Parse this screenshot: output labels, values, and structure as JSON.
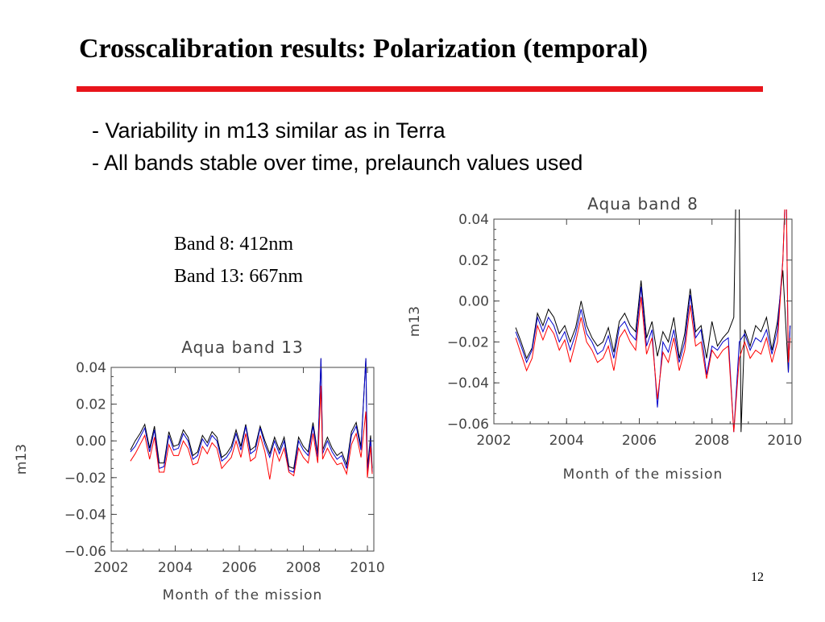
{
  "slide": {
    "title": "Crosscalibration results: Polarization (temporal)",
    "bullets": [
      "- Variability in m13 similar as in Terra",
      "- All bands stable over time, prelaunch values used"
    ],
    "band_notes": [
      "Band 8: 412nm",
      "Band 13: 667nm"
    ],
    "page_number": "12",
    "accent_color": "#e8141b"
  },
  "chart_data": [
    {
      "type": "line",
      "title": "Aqua band 8",
      "xlabel": "Month of the mission",
      "ylabel": "m13",
      "xlim": [
        2002,
        2010.2
      ],
      "ylim": [
        -0.06,
        0.04
      ],
      "xticks": [
        2002,
        2004,
        2006,
        2008,
        2010
      ],
      "yticks": [
        -0.06,
        -0.04,
        -0.02,
        0.0,
        0.02,
        0.04
      ],
      "ytick_labels": [
        "−0.06",
        "−0.04",
        "−0.02",
        "0.00",
        "0.02",
        "0.04"
      ],
      "grid": false,
      "series": [
        {
          "color": "#000000",
          "x": [
            2002.6,
            2002.75,
            2002.9,
            2003.05,
            2003.2,
            2003.35,
            2003.5,
            2003.65,
            2003.8,
            2003.95,
            2004.1,
            2004.25,
            2004.4,
            2004.55,
            2004.7,
            2004.85,
            2005.0,
            2005.15,
            2005.3,
            2005.45,
            2005.6,
            2005.75,
            2005.9,
            2006.05,
            2006.2,
            2006.35,
            2006.5,
            2006.65,
            2006.8,
            2006.95,
            2007.1,
            2007.25,
            2007.4,
            2007.55,
            2007.7,
            2007.85,
            2008.0,
            2008.15,
            2008.3,
            2008.45,
            2008.6,
            2008.65,
            2008.75,
            2008.8,
            2008.9,
            2009.05,
            2009.2,
            2009.35,
            2009.5,
            2009.65,
            2009.8,
            2009.95,
            2010.1,
            2010.15
          ],
          "y": [
            -0.013,
            -0.02,
            -0.028,
            -0.023,
            -0.006,
            -0.012,
            -0.004,
            -0.008,
            -0.016,
            -0.012,
            -0.02,
            -0.013,
            0.0,
            -0.012,
            -0.018,
            -0.022,
            -0.02,
            -0.013,
            -0.025,
            -0.01,
            -0.006,
            -0.012,
            -0.015,
            0.01,
            -0.018,
            -0.01,
            -0.027,
            -0.015,
            -0.02,
            -0.008,
            -0.028,
            -0.016,
            0.006,
            -0.015,
            -0.012,
            -0.028,
            -0.01,
            -0.022,
            -0.018,
            -0.015,
            -0.008,
            0.045,
            0.045,
            -0.064,
            -0.014,
            -0.022,
            -0.012,
            -0.015,
            -0.008,
            -0.024,
            -0.01,
            0.015,
            -0.035,
            -0.012
          ]
        },
        {
          "color": "#0000cc",
          "x": [
            2002.6,
            2002.75,
            2002.9,
            2003.05,
            2003.2,
            2003.35,
            2003.5,
            2003.65,
            2003.8,
            2003.95,
            2004.1,
            2004.25,
            2004.4,
            2004.55,
            2004.7,
            2004.85,
            2005.0,
            2005.15,
            2005.3,
            2005.45,
            2005.6,
            2005.75,
            2005.9,
            2006.05,
            2006.2,
            2006.35,
            2006.5,
            2006.65,
            2006.8,
            2006.95,
            2007.1,
            2007.25,
            2007.4,
            2007.55,
            2007.7,
            2007.85,
            2008.0,
            2008.15,
            2008.3,
            2008.45,
            2008.6,
            2008.75,
            2008.9,
            2009.05,
            2009.2,
            2009.35,
            2009.5,
            2009.65,
            2009.8,
            2009.95,
            2010.0,
            2010.05,
            2010.1,
            2010.15
          ],
          "y": [
            -0.015,
            -0.022,
            -0.03,
            -0.024,
            -0.008,
            -0.015,
            -0.008,
            -0.012,
            -0.02,
            -0.015,
            -0.024,
            -0.016,
            -0.004,
            -0.016,
            -0.02,
            -0.026,
            -0.024,
            -0.017,
            -0.028,
            -0.013,
            -0.01,
            -0.016,
            -0.019,
            0.007,
            -0.022,
            -0.014,
            -0.052,
            -0.02,
            -0.025,
            -0.014,
            -0.03,
            -0.02,
            0.003,
            -0.018,
            -0.014,
            -0.036,
            -0.022,
            -0.024,
            -0.02,
            -0.018,
            -0.064,
            -0.02,
            -0.016,
            -0.024,
            -0.018,
            -0.02,
            -0.014,
            -0.026,
            -0.014,
            0.02,
            0.045,
            0.045,
            -0.035,
            -0.012
          ]
        },
        {
          "color": "#ff0000",
          "x": [
            2002.6,
            2002.75,
            2002.9,
            2003.05,
            2003.2,
            2003.35,
            2003.5,
            2003.65,
            2003.8,
            2003.95,
            2004.1,
            2004.25,
            2004.4,
            2004.55,
            2004.7,
            2004.85,
            2005.0,
            2005.15,
            2005.3,
            2005.45,
            2005.6,
            2005.75,
            2005.9,
            2006.05,
            2006.2,
            2006.35,
            2006.5,
            2006.65,
            2006.8,
            2006.95,
            2007.1,
            2007.25,
            2007.4,
            2007.55,
            2007.7,
            2007.85,
            2008.0,
            2008.15,
            2008.3,
            2008.45,
            2008.6,
            2008.75,
            2008.9,
            2009.05,
            2009.2,
            2009.35,
            2009.5,
            2009.65,
            2009.8,
            2009.95,
            2010.0,
            2010.05,
            2010.1,
            2010.15
          ],
          "y": [
            -0.018,
            -0.026,
            -0.034,
            -0.028,
            -0.012,
            -0.019,
            -0.012,
            -0.016,
            -0.024,
            -0.019,
            -0.03,
            -0.02,
            -0.008,
            -0.02,
            -0.024,
            -0.03,
            -0.028,
            -0.022,
            -0.034,
            -0.018,
            -0.014,
            -0.02,
            -0.024,
            0.002,
            -0.026,
            -0.018,
            -0.048,
            -0.025,
            -0.03,
            -0.018,
            -0.034,
            -0.024,
            -0.002,
            -0.022,
            -0.02,
            -0.038,
            -0.024,
            -0.028,
            -0.024,
            -0.022,
            -0.064,
            -0.028,
            -0.02,
            -0.028,
            -0.024,
            -0.026,
            -0.018,
            -0.03,
            -0.02,
            0.02,
            0.045,
            0.045,
            -0.03,
            -0.018
          ]
        }
      ]
    },
    {
      "type": "line",
      "title": "Aqua band 13",
      "xlabel": "Month of the mission",
      "ylabel": "m13",
      "xlim": [
        2002,
        2010.2
      ],
      "ylim": [
        -0.06,
        0.04
      ],
      "xticks": [
        2002,
        2004,
        2006,
        2008,
        2010
      ],
      "yticks": [
        -0.06,
        -0.04,
        -0.02,
        0.0,
        0.02,
        0.04
      ],
      "ytick_labels": [
        "−0.06",
        "−0.04",
        "−0.02",
        "0.00",
        "0.02",
        "0.04"
      ],
      "grid": false,
      "series": [
        {
          "color": "#000000",
          "x": [
            2002.6,
            2002.75,
            2002.9,
            2003.05,
            2003.2,
            2003.35,
            2003.5,
            2003.65,
            2003.8,
            2003.95,
            2004.1,
            2004.25,
            2004.4,
            2004.55,
            2004.7,
            2004.85,
            2005.0,
            2005.15,
            2005.3,
            2005.45,
            2005.6,
            2005.75,
            2005.9,
            2006.05,
            2006.2,
            2006.35,
            2006.5,
            2006.65,
            2006.8,
            2006.95,
            2007.1,
            2007.25,
            2007.4,
            2007.55,
            2007.7,
            2007.85,
            2008.0,
            2008.15,
            2008.3,
            2008.45,
            2008.55,
            2008.6,
            2008.75,
            2008.9,
            2009.05,
            2009.2,
            2009.35,
            2009.5,
            2009.65,
            2009.8,
            2009.95,
            2010.0,
            2010.1,
            2010.15
          ],
          "y": [
            -0.005,
            0.0,
            0.004,
            0.009,
            -0.004,
            0.008,
            -0.012,
            -0.012,
            0.005,
            -0.003,
            -0.002,
            0.006,
            0.002,
            -0.008,
            -0.006,
            0.003,
            -0.001,
            0.005,
            0.002,
            -0.009,
            -0.007,
            -0.003,
            0.006,
            -0.003,
            0.009,
            -0.005,
            -0.003,
            0.008,
            0.0,
            -0.007,
            0.002,
            -0.005,
            0.002,
            -0.014,
            -0.015,
            0.002,
            -0.003,
            -0.006,
            0.01,
            -0.007,
            0.045,
            -0.005,
            0.002,
            -0.004,
            -0.008,
            -0.006,
            -0.013,
            0.005,
            0.01,
            -0.003,
            0.045,
            -0.015,
            0.003,
            -0.015
          ]
        },
        {
          "color": "#0000cc",
          "x": [
            2002.6,
            2002.75,
            2002.9,
            2003.05,
            2003.2,
            2003.35,
            2003.5,
            2003.65,
            2003.8,
            2003.95,
            2004.1,
            2004.25,
            2004.4,
            2004.55,
            2004.7,
            2004.85,
            2005.0,
            2005.15,
            2005.3,
            2005.45,
            2005.6,
            2005.75,
            2005.9,
            2006.05,
            2006.2,
            2006.35,
            2006.5,
            2006.65,
            2006.8,
            2006.95,
            2007.1,
            2007.25,
            2007.4,
            2007.55,
            2007.7,
            2007.85,
            2008.0,
            2008.15,
            2008.3,
            2008.45,
            2008.55,
            2008.6,
            2008.75,
            2008.9,
            2009.05,
            2009.2,
            2009.35,
            2009.5,
            2009.65,
            2009.8,
            2009.95,
            2010.0,
            2010.1,
            2010.15
          ],
          "y": [
            -0.006,
            -0.003,
            0.002,
            0.007,
            -0.006,
            0.006,
            -0.015,
            -0.014,
            0.003,
            -0.005,
            -0.004,
            0.004,
            0.0,
            -0.01,
            -0.008,
            0.001,
            -0.003,
            0.003,
            0.0,
            -0.011,
            -0.009,
            -0.005,
            0.004,
            -0.005,
            0.008,
            -0.007,
            -0.005,
            0.007,
            -0.002,
            -0.009,
            0.0,
            -0.007,
            0.0,
            -0.016,
            -0.017,
            0.0,
            -0.005,
            -0.008,
            0.008,
            -0.009,
            0.045,
            -0.007,
            0.0,
            -0.006,
            -0.01,
            -0.008,
            -0.015,
            0.003,
            0.008,
            -0.005,
            0.045,
            -0.017,
            0.001,
            -0.017
          ]
        },
        {
          "color": "#ff0000",
          "x": [
            2002.6,
            2002.75,
            2002.9,
            2003.05,
            2003.2,
            2003.35,
            2003.5,
            2003.65,
            2003.8,
            2003.95,
            2004.1,
            2004.25,
            2004.4,
            2004.55,
            2004.7,
            2004.85,
            2005.0,
            2005.15,
            2005.3,
            2005.45,
            2005.6,
            2005.75,
            2005.9,
            2006.05,
            2006.2,
            2006.35,
            2006.5,
            2006.65,
            2006.8,
            2006.95,
            2007.1,
            2007.25,
            2007.4,
            2007.55,
            2007.7,
            2007.85,
            2008.0,
            2008.15,
            2008.3,
            2008.45,
            2008.55,
            2008.6,
            2008.75,
            2008.9,
            2009.05,
            2009.2,
            2009.35,
            2009.5,
            2009.65,
            2009.8,
            2009.95,
            2010.0,
            2010.1,
            2010.15
          ],
          "y": [
            -0.011,
            -0.007,
            -0.002,
            0.003,
            -0.01,
            0.002,
            -0.017,
            -0.017,
            -0.002,
            -0.008,
            -0.008,
            0.0,
            -0.004,
            -0.013,
            -0.012,
            -0.003,
            -0.007,
            -0.001,
            -0.004,
            -0.015,
            -0.012,
            -0.009,
            0.0,
            -0.009,
            0.004,
            -0.011,
            -0.009,
            0.003,
            -0.006,
            -0.021,
            -0.004,
            -0.011,
            -0.004,
            -0.017,
            -0.019,
            -0.004,
            -0.009,
            -0.012,
            0.004,
            -0.012,
            0.03,
            -0.01,
            -0.004,
            -0.009,
            -0.013,
            -0.012,
            -0.018,
            -0.002,
            0.004,
            -0.009,
            0.016,
            -0.02,
            -0.003,
            -0.018
          ]
        }
      ]
    }
  ]
}
